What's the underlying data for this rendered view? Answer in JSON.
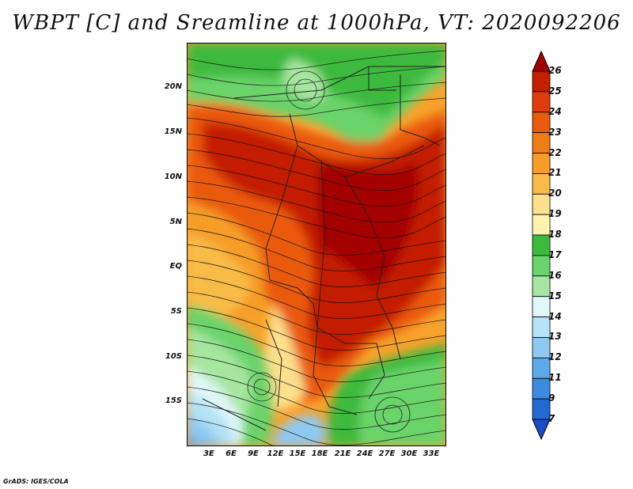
{
  "title": "WBPT [C] and Sreamline at 1000hPa, VT: 2020092206",
  "credit": "GrADS: IGES/COLA",
  "map": {
    "lat_labels": [
      "20N",
      "15N",
      "10N",
      "5N",
      "EQ",
      "5S",
      "10S",
      "15S"
    ],
    "lon_labels": [
      "3E",
      "6E",
      "9E",
      "12E",
      "15E",
      "18E",
      "21E",
      "24E",
      "27E",
      "30E",
      "33E"
    ]
  },
  "colorbar": {
    "levels": [
      "26",
      "25",
      "24",
      "23",
      "22",
      "21",
      "20",
      "19",
      "18",
      "17",
      "16",
      "15",
      "14",
      "13",
      "12",
      "11",
      "9",
      "7"
    ],
    "colors": [
      "#a50000",
      "#c31f00",
      "#de3c0a",
      "#ea5a0c",
      "#f07c14",
      "#f59d26",
      "#f9bb47",
      "#fce08c",
      "#fff3b0",
      "#3cba3c",
      "#6bd36b",
      "#a6e6a0",
      "#e0f7f8",
      "#b5e2f6",
      "#8ec9f2",
      "#5ea9ea",
      "#3c8be0",
      "#2369d2",
      "#1a4ec8"
    ]
  }
}
